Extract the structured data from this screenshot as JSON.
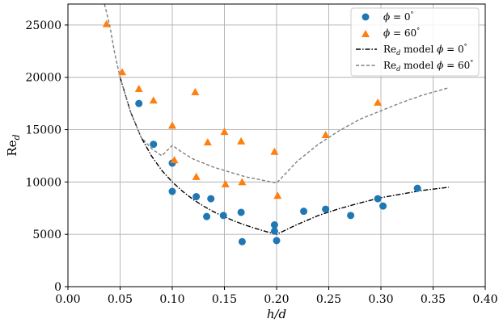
{
  "chart_data": {
    "type": "scatter",
    "title": "",
    "xlabel": "h/d",
    "ylabel": "Re",
    "ylabel_sub": "d",
    "xlim": [
      0.0,
      0.4
    ],
    "ylim": [
      0,
      27000
    ],
    "xticks": [
      "0.00",
      "0.05",
      "0.10",
      "0.15",
      "0.20",
      "0.25",
      "0.30",
      "0.35",
      "0.40"
    ],
    "xtick_values": [
      0.0,
      0.05,
      0.1,
      0.15,
      0.2,
      0.25,
      0.3,
      0.35,
      0.4
    ],
    "yticks": [
      "0",
      "5000",
      "10000",
      "15000",
      "20000",
      "25000"
    ],
    "ytick_values": [
      0,
      5000,
      10000,
      15000,
      20000,
      25000
    ],
    "grid": true,
    "legend_position": "top-right",
    "series": [
      {
        "name": "ϕ = 0°",
        "name_symbol": "ϕ",
        "name_rest": " = 0",
        "name_deg": "°",
        "kind": "scatter",
        "marker": "circle",
        "color": "#1f77b4",
        "x": [
          0.068,
          0.082,
          0.1,
          0.1,
          0.123,
          0.133,
          0.137,
          0.149,
          0.166,
          0.167,
          0.198,
          0.198,
          0.2,
          0.226,
          0.247,
          0.271,
          0.297,
          0.302,
          0.335
        ],
        "y": [
          17500,
          13600,
          11800,
          9100,
          8600,
          6700,
          8400,
          6800,
          7100,
          4300,
          5900,
          5300,
          4400,
          7200,
          7400,
          6800,
          8400,
          7700,
          9400
        ]
      },
      {
        "name": "ϕ = 60°",
        "name_symbol": "ϕ",
        "name_rest": " = 60",
        "name_deg": "°",
        "kind": "scatter",
        "marker": "triangle",
        "color": "#ff7f0e",
        "x": [
          0.037,
          0.052,
          0.068,
          0.082,
          0.1,
          0.102,
          0.122,
          0.123,
          0.134,
          0.15,
          0.151,
          0.166,
          0.167,
          0.198,
          0.201,
          0.247,
          0.297
        ],
        "y": [
          25100,
          20500,
          18900,
          17800,
          15400,
          12100,
          18600,
          10500,
          13800,
          14800,
          9800,
          13900,
          10000,
          12900,
          8700,
          14500,
          17600
        ]
      },
      {
        "name": "Re model ϕ = 0°",
        "name_pre": "Re",
        "name_sub": "d",
        "name_mid": " model ",
        "name_symbol": "ϕ",
        "name_rest": " = 0",
        "name_deg": "°",
        "kind": "line",
        "dash": "dashdot",
        "color": "#000000",
        "x": [
          0.05,
          0.06,
          0.07,
          0.08,
          0.09,
          0.1,
          0.11,
          0.12,
          0.13,
          0.14,
          0.15,
          0.16,
          0.17,
          0.18,
          0.19,
          0.2,
          0.22,
          0.24,
          0.26,
          0.28,
          0.3,
          0.32,
          0.34,
          0.365
        ],
        "y": [
          20000,
          16700,
          14300,
          12500,
          11100,
          10000,
          9100,
          8330,
          7690,
          7140,
          6670,
          6250,
          5880,
          5560,
          5260,
          5000,
          5950,
          6800,
          7450,
          8000,
          8500,
          8850,
          9200,
          9500
        ]
      },
      {
        "name": "Re model ϕ = 60°",
        "name_pre": "Re",
        "name_sub": "d",
        "name_mid": " model ",
        "name_symbol": "ϕ",
        "name_rest": " = 60",
        "name_deg": "°",
        "kind": "line",
        "dash": "dashed",
        "color": "#7f7f7f",
        "x": [
          0.035,
          0.04,
          0.045,
          0.05,
          0.06,
          0.07,
          0.08,
          0.09,
          0.1,
          0.11,
          0.12,
          0.13,
          0.14,
          0.15,
          0.16,
          0.17,
          0.18,
          0.19,
          0.2,
          0.22,
          0.24,
          0.26,
          0.28,
          0.3,
          0.32,
          0.34,
          0.365
        ],
        "y": [
          27000,
          25000,
          22200,
          20000,
          16700,
          14300,
          13200,
          12500,
          13500,
          12800,
          12200,
          11800,
          11400,
          11100,
          10800,
          10500,
          10300,
          10100,
          9900,
          12000,
          13600,
          14900,
          16000,
          16800,
          17600,
          18300,
          19000
        ]
      }
    ]
  }
}
